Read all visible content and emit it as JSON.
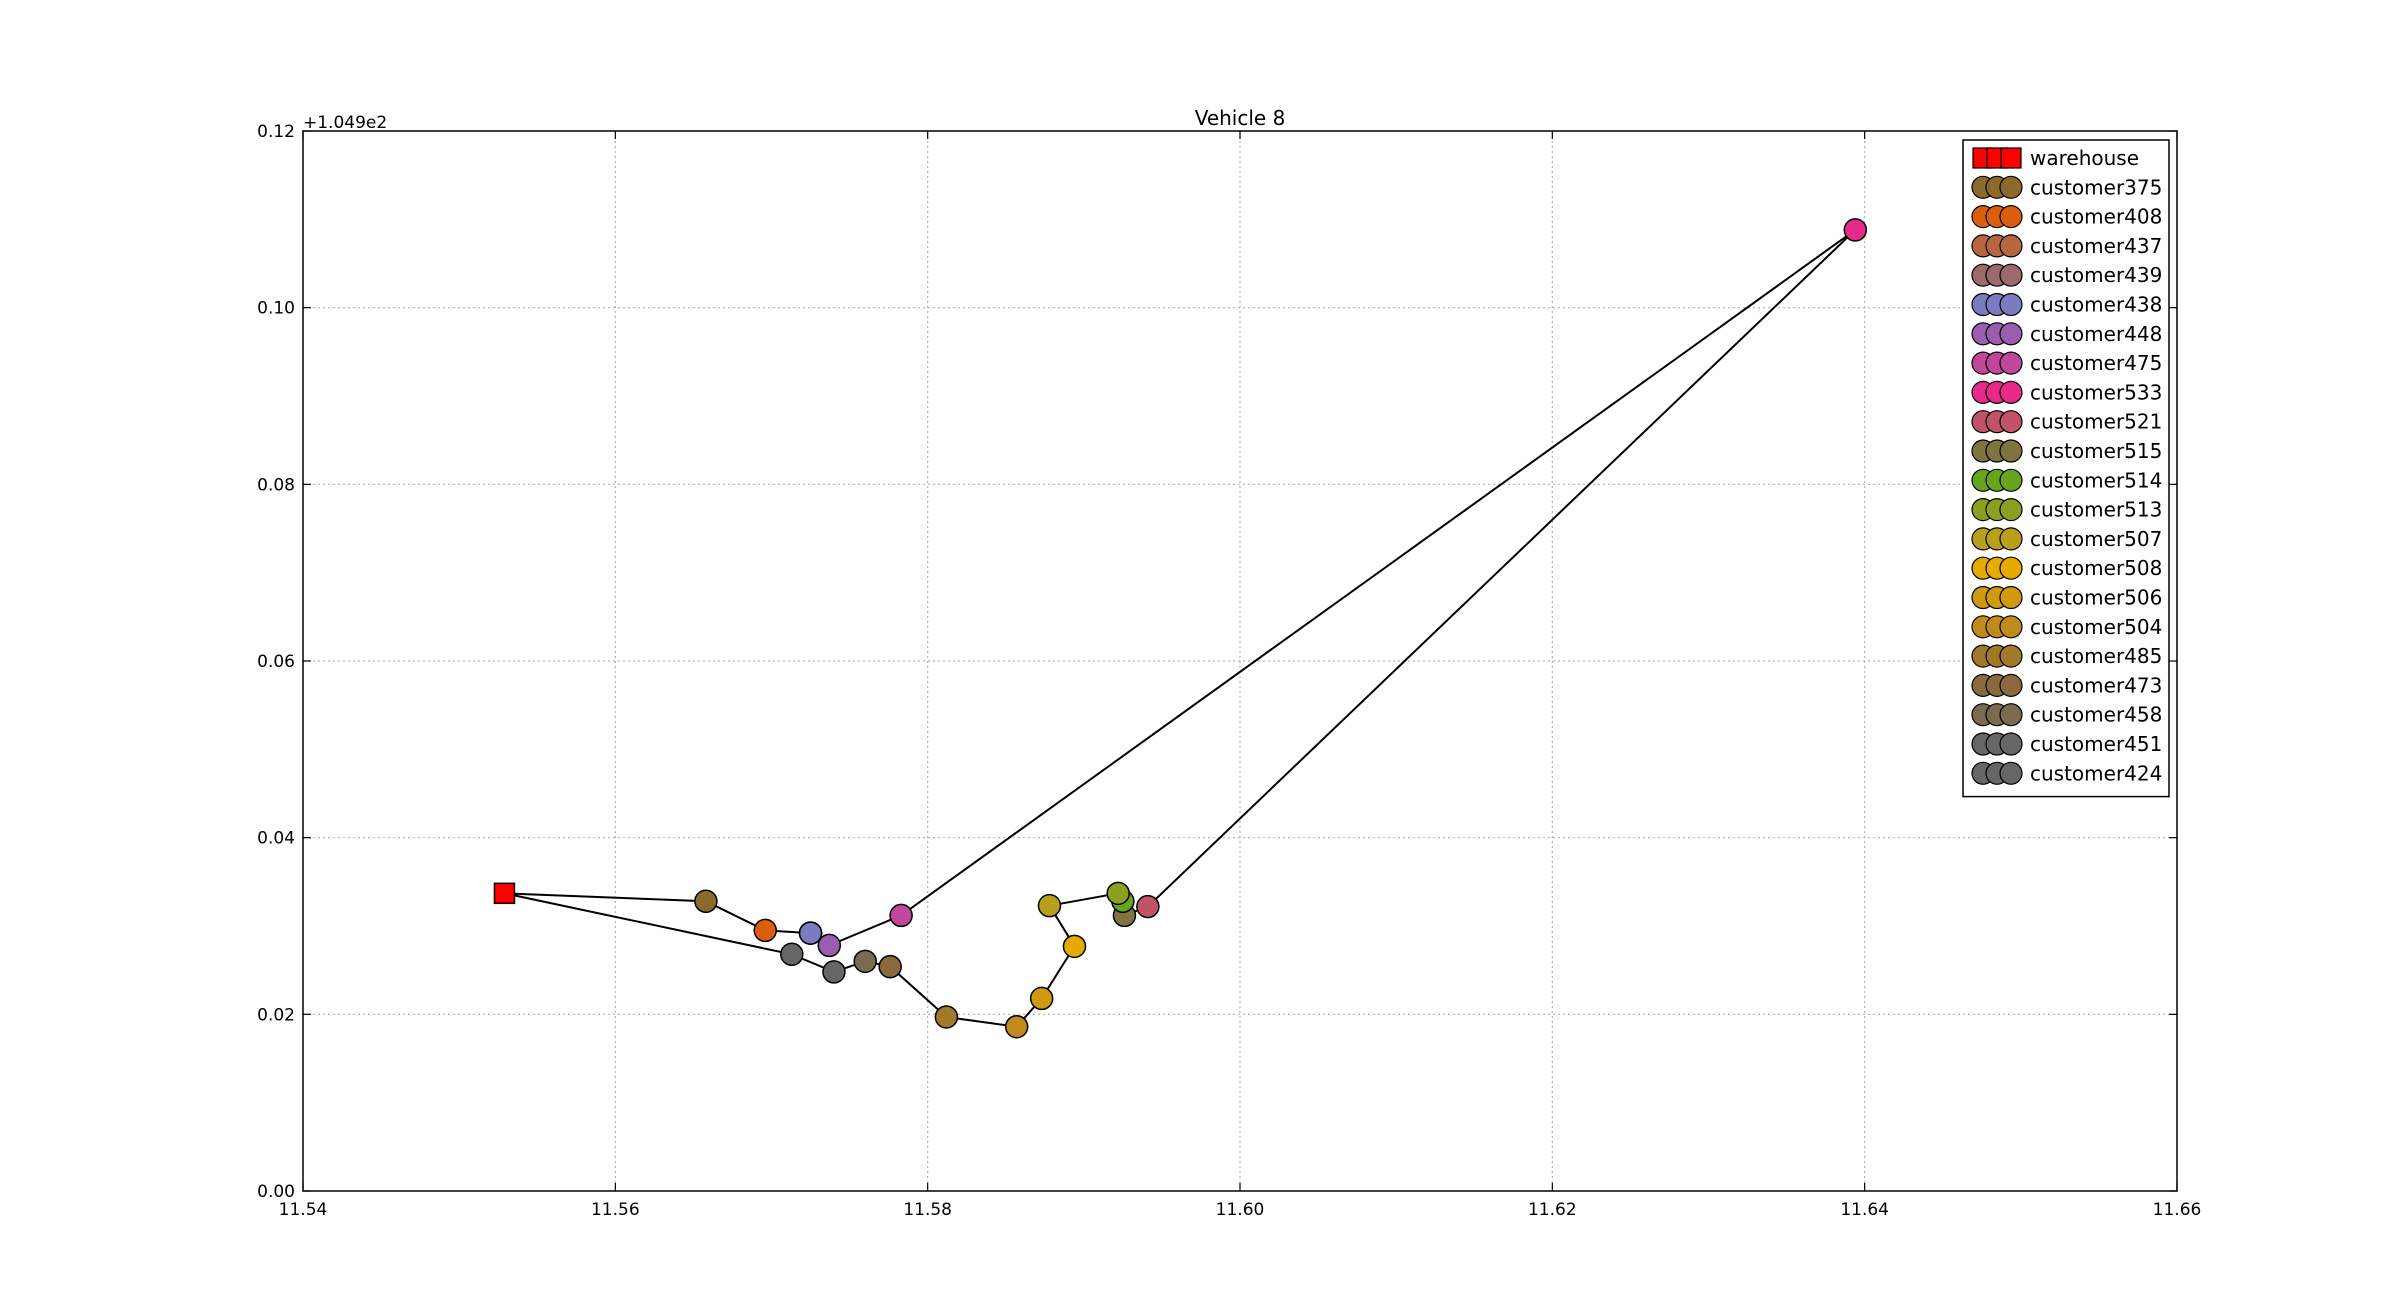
{
  "chart_data": {
    "type": "scatter",
    "title": "Vehicle 8",
    "xlabel": "",
    "ylabel": "",
    "xlim": [
      11.54,
      11.66
    ],
    "ylim": [
      0.0,
      0.12
    ],
    "y_offset_label": "+1.049e2",
    "x_ticks": [
      "11.54",
      "11.56",
      "11.58",
      "11.60",
      "11.62",
      "11.64",
      "11.66"
    ],
    "y_ticks": [
      "0.00",
      "0.02",
      "0.04",
      "0.06",
      "0.08",
      "0.10",
      "0.12"
    ],
    "grid": true,
    "legend_placement": "top-right",
    "route": [
      {
        "name": "warehouse",
        "x": 11.5529,
        "y": 0.0337,
        "marker": "square",
        "color": "#ff0000"
      },
      {
        "name": "customer375",
        "x": 11.5658,
        "y": 0.0328,
        "marker": "circle",
        "color": "#8b6a2a"
      },
      {
        "name": "customer408",
        "x": 11.5696,
        "y": 0.0295,
        "marker": "circle",
        "color": "#d95f0e"
      },
      {
        "name": "customer437",
        "x": 11.5725,
        "y": 0.0292,
        "marker": "circle",
        "color": "#b8663f"
      },
      {
        "name": "customer439",
        "x": 11.5725,
        "y": 0.0292,
        "marker": "circle",
        "color": "#9c6a6a"
      },
      {
        "name": "customer438",
        "x": 11.5725,
        "y": 0.0292,
        "marker": "circle",
        "color": "#7b7bc0"
      },
      {
        "name": "customer448",
        "x": 11.5737,
        "y": 0.0278,
        "marker": "circle",
        "color": "#9b5db0"
      },
      {
        "name": "customer475",
        "x": 11.5783,
        "y": 0.0312,
        "marker": "circle",
        "color": "#c0479b"
      },
      {
        "name": "customer533",
        "x": 11.6394,
        "y": 0.1088,
        "marker": "circle",
        "color": "#e7298a"
      },
      {
        "name": "customer521",
        "x": 11.5941,
        "y": 0.0322,
        "marker": "circle",
        "color": "#c0526a"
      },
      {
        "name": "customer515",
        "x": 11.5926,
        "y": 0.0312,
        "marker": "circle",
        "color": "#7f7340"
      },
      {
        "name": "customer514",
        "x": 11.5925,
        "y": 0.0328,
        "marker": "circle",
        "color": "#66a61e"
      },
      {
        "name": "customer513",
        "x": 11.5922,
        "y": 0.0337,
        "marker": "circle",
        "color": "#8ca020"
      },
      {
        "name": "customer507",
        "x": 11.5878,
        "y": 0.0323,
        "marker": "circle",
        "color": "#b8a01a"
      },
      {
        "name": "customer508",
        "x": 11.5894,
        "y": 0.0277,
        "marker": "circle",
        "color": "#e6ab02"
      },
      {
        "name": "customer506",
        "x": 11.5873,
        "y": 0.0218,
        "marker": "circle",
        "color": "#d09a10"
      },
      {
        "name": "customer504",
        "x": 11.5857,
        "y": 0.0186,
        "marker": "circle",
        "color": "#c08a1c"
      },
      {
        "name": "customer485",
        "x": 11.5812,
        "y": 0.0197,
        "marker": "circle",
        "color": "#a07a2a"
      },
      {
        "name": "customer473",
        "x": 11.5776,
        "y": 0.0254,
        "marker": "circle",
        "color": "#8a6a3c"
      },
      {
        "name": "customer458",
        "x": 11.576,
        "y": 0.026,
        "marker": "circle",
        "color": "#7a6a50"
      },
      {
        "name": "customer451",
        "x": 11.574,
        "y": 0.0248,
        "marker": "circle",
        "color": "#666666"
      },
      {
        "name": "customer424",
        "x": 11.5713,
        "y": 0.0268,
        "marker": "circle",
        "color": "#666666"
      },
      {
        "name": "warehouse",
        "x": 11.5529,
        "y": 0.0337,
        "marker": "square",
        "color": "#ff0000"
      }
    ],
    "legend": [
      {
        "label": "warehouse",
        "marker": "square",
        "color": "#ff0000"
      },
      {
        "label": "customer375",
        "marker": "circle",
        "color": "#8b6a2a"
      },
      {
        "label": "customer408",
        "marker": "circle",
        "color": "#d95f0e"
      },
      {
        "label": "customer437",
        "marker": "circle",
        "color": "#b8663f"
      },
      {
        "label": "customer439",
        "marker": "circle",
        "color": "#9c6a6a"
      },
      {
        "label": "customer438",
        "marker": "circle",
        "color": "#7b7bc0"
      },
      {
        "label": "customer448",
        "marker": "circle",
        "color": "#9b5db0"
      },
      {
        "label": "customer475",
        "marker": "circle",
        "color": "#c0479b"
      },
      {
        "label": "customer533",
        "marker": "circle",
        "color": "#e7298a"
      },
      {
        "label": "customer521",
        "marker": "circle",
        "color": "#c0526a"
      },
      {
        "label": "customer515",
        "marker": "circle",
        "color": "#7f7340"
      },
      {
        "label": "customer514",
        "marker": "circle",
        "color": "#66a61e"
      },
      {
        "label": "customer513",
        "marker": "circle",
        "color": "#8ca020"
      },
      {
        "label": "customer507",
        "marker": "circle",
        "color": "#b8a01a"
      },
      {
        "label": "customer508",
        "marker": "circle",
        "color": "#e6ab02"
      },
      {
        "label": "customer506",
        "marker": "circle",
        "color": "#d09a10"
      },
      {
        "label": "customer504",
        "marker": "circle",
        "color": "#c08a1c"
      },
      {
        "label": "customer485",
        "marker": "circle",
        "color": "#a07a2a"
      },
      {
        "label": "customer473",
        "marker": "circle",
        "color": "#8a6a3c"
      },
      {
        "label": "customer458",
        "marker": "circle",
        "color": "#7a6a50"
      },
      {
        "label": "customer451",
        "marker": "circle",
        "color": "#666666"
      },
      {
        "label": "customer424",
        "marker": "circle",
        "color": "#666666"
      }
    ]
  }
}
